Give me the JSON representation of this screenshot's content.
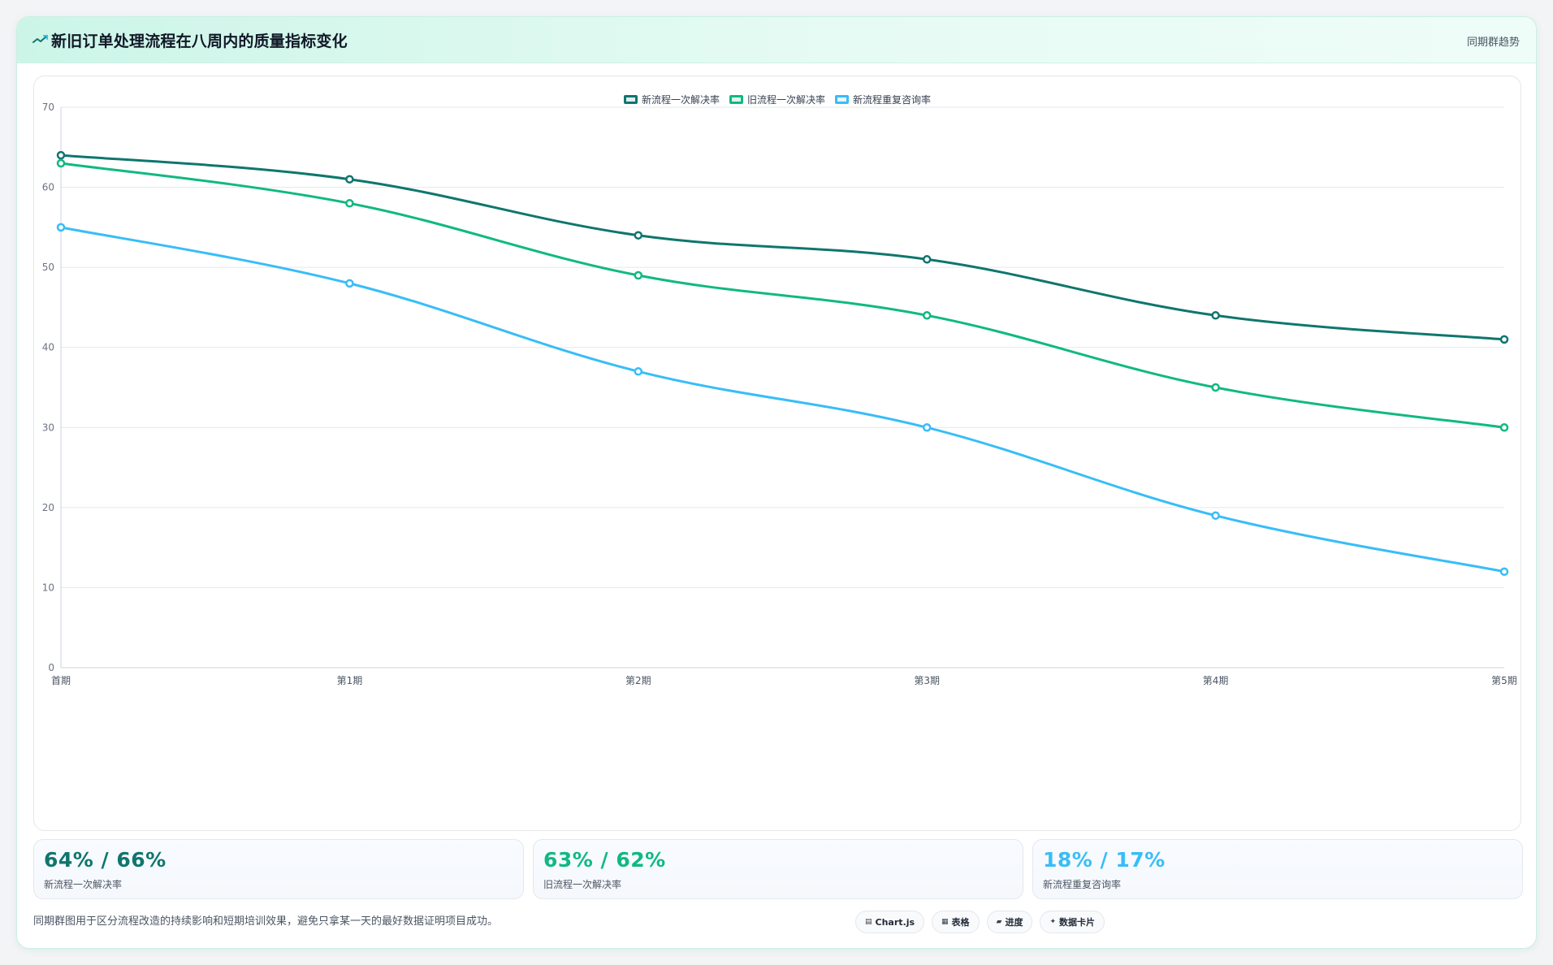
{
  "header": {
    "icon": "trend-line-icon",
    "title": "新旧订单处理流程在八周内的质量指标变化",
    "link_label": "同期群趋势"
  },
  "chart_data": {
    "type": "line",
    "title": "",
    "xlabel": "",
    "ylabel": "",
    "categories": [
      "首期",
      "第1期",
      "第2期",
      "第3期",
      "第4期",
      "第5期"
    ],
    "ylim": [
      0,
      70
    ],
    "yticks": [
      0,
      10,
      20,
      30,
      40,
      50,
      60,
      70
    ],
    "grid": true,
    "legend_position": "top-center",
    "series": [
      {
        "name": "新流程一次解决率",
        "color": "#0f766e",
        "values": [
          64,
          61,
          54,
          51,
          44,
          41
        ]
      },
      {
        "name": "旧流程一次解决率",
        "color": "#10b981",
        "values": [
          63,
          58,
          49,
          44,
          35,
          30
        ]
      },
      {
        "name": "新流程重复咨询率",
        "color": "#38bdf8",
        "values": [
          55,
          48,
          37,
          30,
          19,
          12
        ]
      }
    ]
  },
  "stats": [
    {
      "value": "64% / 66%",
      "label": "新流程一次解决率",
      "color": "#0f766e"
    },
    {
      "value": "63% / 62%",
      "label": "旧流程一次解决率",
      "color": "#10b981"
    },
    {
      "value": "18% / 17%",
      "label": "新流程重复咨询率",
      "color": "#38bdf8"
    }
  ],
  "footnote": "同期群图用于区分流程改造的持续影响和短期培训效果，避免只拿某一天的最好数据证明项目成功。",
  "chips": [
    {
      "icon": "chart-icon",
      "glyph": "▤",
      "label": "Chart.js"
    },
    {
      "icon": "table-icon",
      "glyph": "▦",
      "label": "表格"
    },
    {
      "icon": "progress-icon",
      "glyph": "▰",
      "label": "进度"
    },
    {
      "icon": "data-card-icon",
      "glyph": "✦",
      "label": "数据卡片"
    }
  ]
}
